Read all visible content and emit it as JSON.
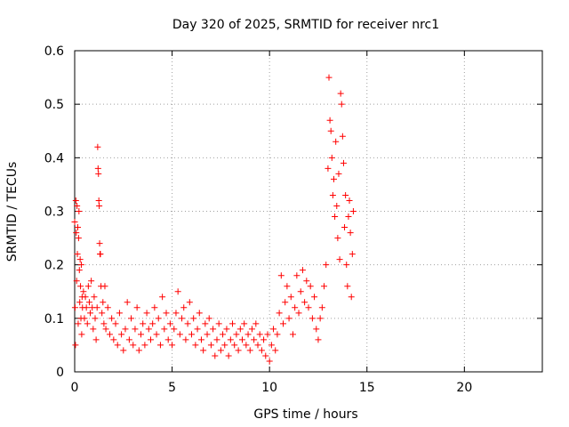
{
  "chart_data": {
    "type": "scatter",
    "title": "Day 320 of 2025, SRMTID for receiver nrc1",
    "xlabel": "GPS time / hours",
    "ylabel": "SRMTID / TECUs",
    "xlim": [
      0,
      24
    ],
    "ylim": [
      0,
      0.6
    ],
    "xticks": [
      0,
      5,
      10,
      15,
      20
    ],
    "xtick_labels": [
      "0",
      "5",
      "10",
      "15",
      "20"
    ],
    "yticks": [
      0,
      0.1,
      0.2,
      0.3,
      0.4,
      0.5,
      0.6
    ],
    "ytick_labels": [
      "0",
      "0.1",
      "0.2",
      "0.3",
      "0.4",
      "0.5",
      "0.6"
    ],
    "grid": true,
    "marker": "plus",
    "color": "#ff0000",
    "series": [
      {
        "name": "nrc1",
        "points": [
          [
            0.0,
            0.28
          ],
          [
            0.02,
            0.12
          ],
          [
            0.04,
            0.05
          ],
          [
            0.06,
            0.32
          ],
          [
            0.08,
            0.26
          ],
          [
            0.1,
            0.17
          ],
          [
            0.12,
            0.31
          ],
          [
            0.14,
            0.22
          ],
          [
            0.16,
            0.27
          ],
          [
            0.18,
            0.09
          ],
          [
            0.2,
            0.25
          ],
          [
            0.22,
            0.3
          ],
          [
            0.24,
            0.19
          ],
          [
            0.26,
            0.13
          ],
          [
            0.28,
            0.21
          ],
          [
            0.3,
            0.16
          ],
          [
            0.32,
            0.1
          ],
          [
            0.34,
            0.2
          ],
          [
            0.36,
            0.07
          ],
          [
            0.38,
            0.14
          ],
          [
            0.4,
            0.12
          ],
          [
            0.45,
            0.15
          ],
          [
            0.5,
            0.1
          ],
          [
            0.55,
            0.14
          ],
          [
            0.6,
            0.12
          ],
          [
            0.65,
            0.09
          ],
          [
            0.7,
            0.16
          ],
          [
            0.75,
            0.13
          ],
          [
            0.8,
            0.11
          ],
          [
            0.85,
            0.17
          ],
          [
            0.9,
            0.12
          ],
          [
            0.95,
            0.08
          ],
          [
            1.0,
            0.14
          ],
          [
            1.05,
            0.1
          ],
          [
            1.1,
            0.06
          ],
          [
            1.15,
            0.12
          ],
          [
            1.18,
            0.42
          ],
          [
            1.2,
            0.38
          ],
          [
            1.22,
            0.37
          ],
          [
            1.24,
            0.32
          ],
          [
            1.26,
            0.31
          ],
          [
            1.28,
            0.24
          ],
          [
            1.3,
            0.22
          ],
          [
            1.32,
            0.22
          ],
          [
            1.35,
            0.16
          ],
          [
            1.4,
            0.11
          ],
          [
            1.45,
            0.13
          ],
          [
            1.5,
            0.09
          ],
          [
            1.55,
            0.16
          ],
          [
            1.6,
            0.08
          ],
          [
            1.7,
            0.12
          ],
          [
            1.8,
            0.07
          ],
          [
            1.9,
            0.1
          ],
          [
            2.0,
            0.06
          ],
          [
            2.1,
            0.09
          ],
          [
            2.2,
            0.05
          ],
          [
            2.3,
            0.11
          ],
          [
            2.4,
            0.07
          ],
          [
            2.5,
            0.04
          ],
          [
            2.6,
            0.08
          ],
          [
            2.7,
            0.13
          ],
          [
            2.8,
            0.06
          ],
          [
            2.9,
            0.1
          ],
          [
            3.0,
            0.05
          ],
          [
            3.1,
            0.08
          ],
          [
            3.2,
            0.12
          ],
          [
            3.3,
            0.04
          ],
          [
            3.4,
            0.07
          ],
          [
            3.5,
            0.09
          ],
          [
            3.6,
            0.05
          ],
          [
            3.7,
            0.11
          ],
          [
            3.8,
            0.08
          ],
          [
            3.9,
            0.06
          ],
          [
            4.0,
            0.09
          ],
          [
            4.1,
            0.12
          ],
          [
            4.2,
            0.07
          ],
          [
            4.3,
            0.1
          ],
          [
            4.4,
            0.05
          ],
          [
            4.5,
            0.14
          ],
          [
            4.6,
            0.08
          ],
          [
            4.7,
            0.11
          ],
          [
            4.8,
            0.06
          ],
          [
            4.9,
            0.09
          ],
          [
            5.0,
            0.05
          ],
          [
            5.1,
            0.08
          ],
          [
            5.2,
            0.11
          ],
          [
            5.3,
            0.15
          ],
          [
            5.4,
            0.07
          ],
          [
            5.5,
            0.1
          ],
          [
            5.6,
            0.12
          ],
          [
            5.7,
            0.06
          ],
          [
            5.8,
            0.09
          ],
          [
            5.9,
            0.13
          ],
          [
            6.0,
            0.07
          ],
          [
            6.1,
            0.1
          ],
          [
            6.2,
            0.05
          ],
          [
            6.3,
            0.08
          ],
          [
            6.4,
            0.11
          ],
          [
            6.5,
            0.06
          ],
          [
            6.6,
            0.04
          ],
          [
            6.7,
            0.09
          ],
          [
            6.8,
            0.07
          ],
          [
            6.9,
            0.1
          ],
          [
            7.0,
            0.05
          ],
          [
            7.1,
            0.08
          ],
          [
            7.2,
            0.03
          ],
          [
            7.3,
            0.06
          ],
          [
            7.4,
            0.09
          ],
          [
            7.5,
            0.04
          ],
          [
            7.6,
            0.07
          ],
          [
            7.7,
            0.05
          ],
          [
            7.8,
            0.08
          ],
          [
            7.9,
            0.03
          ],
          [
            8.0,
            0.06
          ],
          [
            8.1,
            0.09
          ],
          [
            8.2,
            0.05
          ],
          [
            8.3,
            0.07
          ],
          [
            8.4,
            0.04
          ],
          [
            8.5,
            0.08
          ],
          [
            8.6,
            0.06
          ],
          [
            8.7,
            0.09
          ],
          [
            8.8,
            0.05
          ],
          [
            8.9,
            0.07
          ],
          [
            9.0,
            0.04
          ],
          [
            9.1,
            0.08
          ],
          [
            9.2,
            0.06
          ],
          [
            9.3,
            0.09
          ],
          [
            9.4,
            0.05
          ],
          [
            9.5,
            0.07
          ],
          [
            9.6,
            0.04
          ],
          [
            9.7,
            0.06
          ],
          [
            9.8,
            0.03
          ],
          [
            9.9,
            0.07
          ],
          [
            10.0,
            0.02
          ],
          [
            10.1,
            0.05
          ],
          [
            10.2,
            0.08
          ],
          [
            10.3,
            0.04
          ],
          [
            10.4,
            0.07
          ],
          [
            10.5,
            0.11
          ],
          [
            10.6,
            0.18
          ],
          [
            10.7,
            0.09
          ],
          [
            10.8,
            0.13
          ],
          [
            10.9,
            0.16
          ],
          [
            11.0,
            0.1
          ],
          [
            11.1,
            0.14
          ],
          [
            11.2,
            0.07
          ],
          [
            11.3,
            0.12
          ],
          [
            11.4,
            0.18
          ],
          [
            11.5,
            0.11
          ],
          [
            11.6,
            0.15
          ],
          [
            11.7,
            0.19
          ],
          [
            11.8,
            0.13
          ],
          [
            11.9,
            0.17
          ],
          [
            12.0,
            0.12
          ],
          [
            12.1,
            0.16
          ],
          [
            12.2,
            0.1
          ],
          [
            12.3,
            0.14
          ],
          [
            12.4,
            0.08
          ],
          [
            12.5,
            0.06
          ],
          [
            12.6,
            0.1
          ],
          [
            12.7,
            0.12
          ],
          [
            12.8,
            0.16
          ],
          [
            12.9,
            0.2
          ],
          [
            13.0,
            0.38
          ],
          [
            13.05,
            0.55
          ],
          [
            13.1,
            0.47
          ],
          [
            13.15,
            0.45
          ],
          [
            13.2,
            0.4
          ],
          [
            13.25,
            0.33
          ],
          [
            13.3,
            0.36
          ],
          [
            13.35,
            0.29
          ],
          [
            13.4,
            0.43
          ],
          [
            13.45,
            0.31
          ],
          [
            13.5,
            0.25
          ],
          [
            13.55,
            0.37
          ],
          [
            13.6,
            0.21
          ],
          [
            13.65,
            0.52
          ],
          [
            13.7,
            0.5
          ],
          [
            13.75,
            0.44
          ],
          [
            13.8,
            0.39
          ],
          [
            13.85,
            0.27
          ],
          [
            13.9,
            0.33
          ],
          [
            13.95,
            0.2
          ],
          [
            14.0,
            0.16
          ],
          [
            14.05,
            0.29
          ],
          [
            14.1,
            0.32
          ],
          [
            14.15,
            0.26
          ],
          [
            14.2,
            0.14
          ],
          [
            14.25,
            0.22
          ],
          [
            14.3,
            0.3
          ]
        ]
      }
    ]
  }
}
